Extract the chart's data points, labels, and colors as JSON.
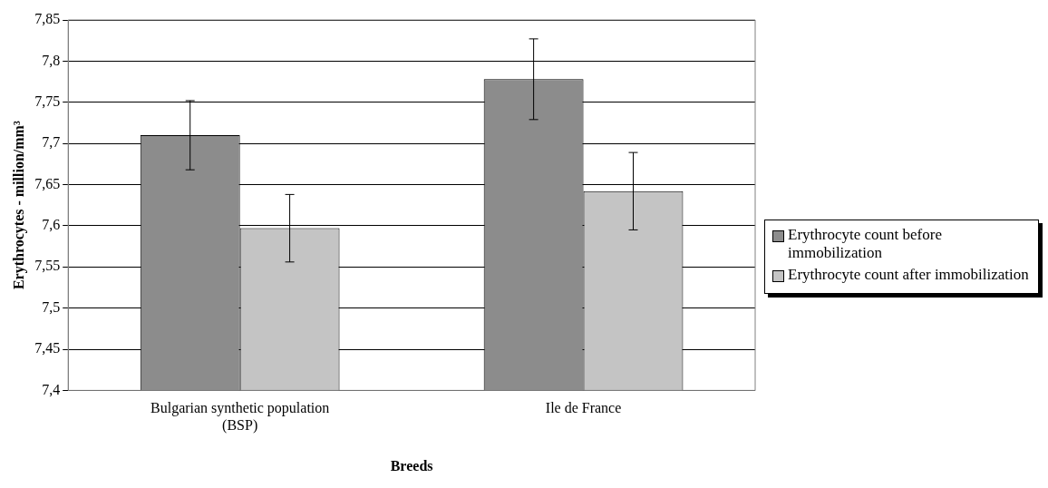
{
  "chart_data": {
    "type": "bar",
    "xlabel": "Breeds",
    "ylabel": "Erythrocytes - million/mm³",
    "categories": [
      "Bulgarian synthetic population (BSP)",
      "Ile de France"
    ],
    "series": [
      {
        "name": "Erythrocyte count before immobilization",
        "color": "#8c8c8c",
        "values": [
          7.71,
          7.778
        ],
        "errors": [
          0.042,
          0.049
        ]
      },
      {
        "name": "Erythrocyte count after immobilization",
        "color": "#c4c4c4",
        "values": [
          7.597,
          7.642
        ],
        "errors": [
          0.041,
          0.047
        ]
      }
    ],
    "ylim": [
      7.4,
      7.85
    ],
    "yticks": [
      {
        "value": 7.4,
        "label": "7,4"
      },
      {
        "value": 7.45,
        "label": "7,45"
      },
      {
        "value": 7.5,
        "label": "7,5"
      },
      {
        "value": 7.55,
        "label": "7,55"
      },
      {
        "value": 7.6,
        "label": "7,6"
      },
      {
        "value": 7.65,
        "label": "7,65"
      },
      {
        "value": 7.7,
        "label": "7,7"
      },
      {
        "value": 7.75,
        "label": "7,75"
      },
      {
        "value": 7.8,
        "label": "7,8"
      },
      {
        "value": 7.85,
        "label": "7,85"
      }
    ],
    "grid": "y",
    "legend": "right"
  }
}
